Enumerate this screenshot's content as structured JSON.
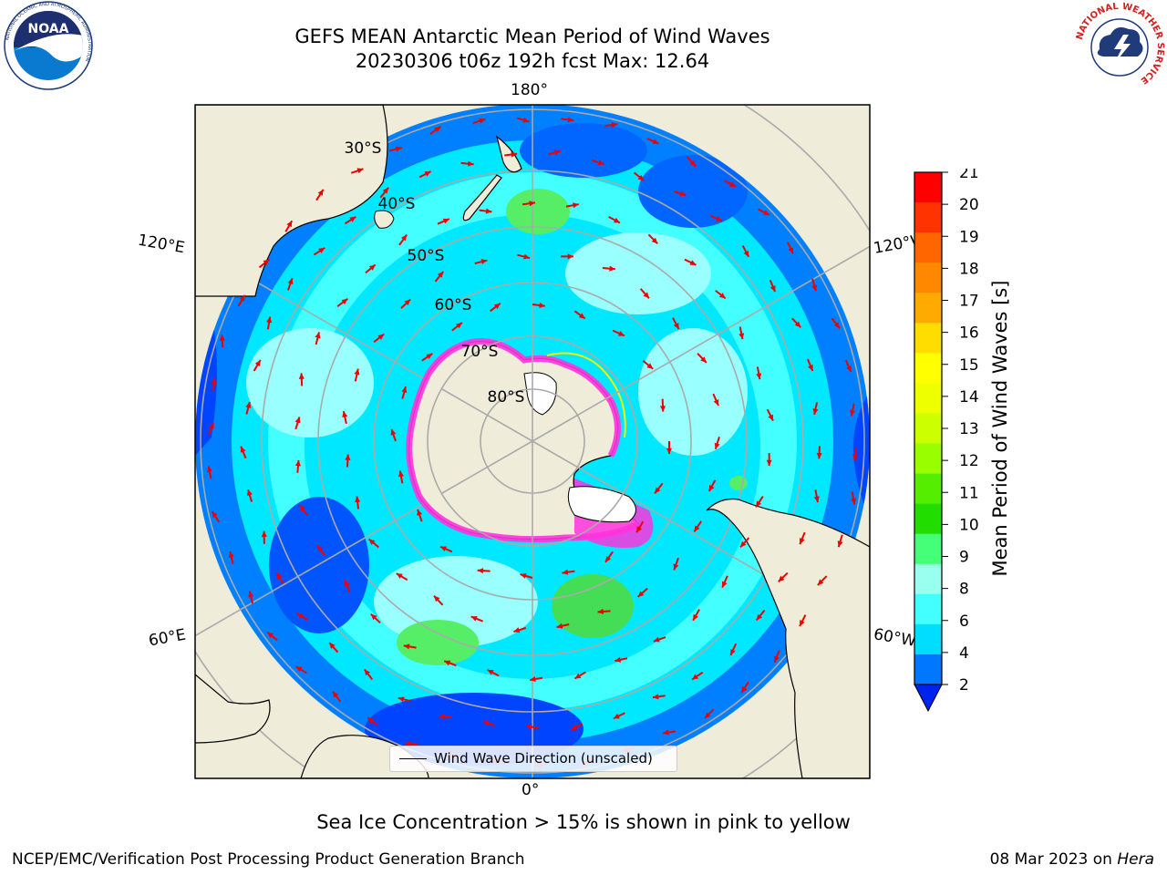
{
  "header": {
    "title_line1": "GEFS MEAN Antarctic Mean Period of Wind Waves",
    "title_line2": "20230306 t06z 192h fcst   Max: 12.64"
  },
  "map": {
    "projection": "south-polar-stereographic",
    "longitude_labels": {
      "top": "180°",
      "bottom": "0°",
      "upper_left": "120°E",
      "upper_right": "120°W",
      "lower_left": "60°E",
      "lower_right": "60°W"
    },
    "latitude_labels": [
      "30°S",
      "40°S",
      "50°S",
      "60°S",
      "70°S",
      "80°S"
    ],
    "gridlines": true,
    "colors": {
      "land": "#efecd9",
      "ocean_dark": "#0044ff",
      "ocean_mid": "#0080ff",
      "ocean_light": "#00e8ff",
      "ocean_pale": "#99ffff",
      "waves_green": "#55ee66",
      "sea_ice_pink": "#ff33dd",
      "sea_ice_yellow": "#ffee00",
      "arrows": "#ee0000",
      "gridline": "#aaaaaa"
    }
  },
  "legend": {
    "entry": "Wind Wave Direction (unscaled)"
  },
  "colorbar": {
    "label": "Mean Period of Wind Waves [s]",
    "ticks": [
      "21",
      "20",
      "19",
      "18",
      "17",
      "16",
      "15",
      "14",
      "13",
      "12",
      "11",
      "10",
      "9",
      "8",
      "6",
      "4",
      "2"
    ],
    "colors": [
      "#ff0000",
      "#ff3300",
      "#ff6600",
      "#ff8800",
      "#ffaa00",
      "#ffdd00",
      "#ffff00",
      "#eeff00",
      "#ccff00",
      "#99ff00",
      "#55ee00",
      "#22dd00",
      "#44ff77",
      "#99ffee",
      "#44ffff",
      "#00ddff",
      "#0077ff"
    ],
    "extend_below_color": "#0022ee"
  },
  "footer": {
    "note": "Sea Ice Concentration > 15% is shown in pink to yellow",
    "credit_left": "NCEP/EMC/Verification Post Processing Product Generation Branch",
    "credit_date": "08 Mar 2023 on ",
    "credit_machine": "Hera"
  },
  "logos": {
    "noaa_text": "NOAA",
    "noaa_ring": "NATIONAL OCEANIC AND ATMOSPHERIC ADMINISTRATION",
    "noaa_ring_bottom": "U.S. DEPARTMENT OF COMMERCE",
    "nws_ring": "NATIONAL WEATHER SERVICE"
  }
}
